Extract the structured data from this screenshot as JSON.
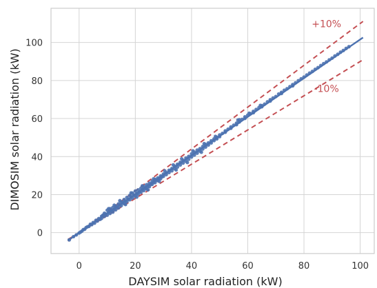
{
  "chart_data": {
    "type": "scatter",
    "title": "",
    "xlabel": "DAYSIM solar radiation (kW)",
    "ylabel": "DIMOSIM solar radiation (kW)",
    "xlim": [
      -10,
      105
    ],
    "ylim": [
      -11,
      118
    ],
    "xticks": [
      0,
      20,
      40,
      60,
      80,
      100
    ],
    "yticks": [
      0,
      20,
      40,
      60,
      80,
      100
    ],
    "grid": true,
    "legend": "none",
    "colors": {
      "points": "#4c72b0",
      "fit_line": "#4c72b0",
      "bounds": "#c44e52",
      "grid": "#d4d4d4",
      "spine": "#cccccc"
    },
    "fit_line": {
      "x": [
        -4,
        101
      ],
      "y": [
        -4.1,
        102.6
      ]
    },
    "bounds": [
      {
        "label": "+10%",
        "factor": 1.1,
        "x": [
          -4,
          101
        ],
        "label_at": [
          88,
          108
        ]
      },
      {
        "label": "-10%",
        "factor": 0.9,
        "x": [
          -4,
          101
        ],
        "label_at": [
          88,
          74
        ]
      }
    ],
    "points": [
      [
        -3.5,
        -3.8
      ],
      [
        -2.0,
        -2.1
      ],
      [
        -1.0,
        -1.2
      ],
      [
        0,
        -0.2
      ],
      [
        0.5,
        0.3
      ],
      [
        1.0,
        0.8
      ],
      [
        1.5,
        1.6
      ],
      [
        2.0,
        1.8
      ],
      [
        2.5,
        2.7
      ],
      [
        3.0,
        3.1
      ],
      [
        3.5,
        3.3
      ],
      [
        4.0,
        4.4
      ],
      [
        4.5,
        4.2
      ],
      [
        5.0,
        5.3
      ],
      [
        5.5,
        5.0
      ],
      [
        6.0,
        6.5
      ],
      [
        6.5,
        6.1
      ],
      [
        7.0,
        7.4
      ],
      [
        7.5,
        7.0
      ],
      [
        8.0,
        8.6
      ],
      [
        8.0,
        7.5
      ],
      [
        8.5,
        9.2
      ],
      [
        9.0,
        8.5
      ],
      [
        9.0,
        10.2
      ],
      [
        9.5,
        9.8
      ],
      [
        10.0,
        11.8
      ],
      [
        10.0,
        9.2
      ],
      [
        10.5,
        10.8
      ],
      [
        11.0,
        12.6
      ],
      [
        11.0,
        10.1
      ],
      [
        11.5,
        11.5
      ],
      [
        12.0,
        13.2
      ],
      [
        12.0,
        10.8
      ],
      [
        12.5,
        12.2
      ],
      [
        13.0,
        14.0
      ],
      [
        13.0,
        12.0
      ],
      [
        13.5,
        13.3
      ],
      [
        14.0,
        15.1
      ],
      [
        14.0,
        13.0
      ],
      [
        14.5,
        14.6
      ],
      [
        15.0,
        16.2
      ],
      [
        15.0,
        14.2
      ],
      [
        15.5,
        15.8
      ],
      [
        16.0,
        17.4
      ],
      [
        16.0,
        15.3
      ],
      [
        16.5,
        16.6
      ],
      [
        17.0,
        18.5
      ],
      [
        17.0,
        16.3
      ],
      [
        17.5,
        17.7
      ],
      [
        18.0,
        19.6
      ],
      [
        18.0,
        17.3
      ],
      [
        18.5,
        18.9
      ],
      [
        19.0,
        20.8
      ],
      [
        19.0,
        18.2
      ],
      [
        19.5,
        19.8
      ],
      [
        20.0,
        21.9
      ],
      [
        20.0,
        19.2
      ],
      [
        20.5,
        20.6
      ],
      [
        21.0,
        22.5
      ],
      [
        21.0,
        20.2
      ],
      [
        21.5,
        21.4
      ],
      [
        22.0,
        23.4
      ],
      [
        22.0,
        21.2
      ],
      [
        22.5,
        22.6
      ],
      [
        23.0,
        24.3
      ],
      [
        23.0,
        22.1
      ],
      [
        23.5,
        23.4
      ],
      [
        24.0,
        25.2
      ],
      [
        24.0,
        23.0
      ],
      [
        24.5,
        24.3
      ],
      [
        25.0,
        26.0
      ],
      [
        25.0,
        24.2
      ],
      [
        25.5,
        25.3
      ],
      [
        26.0,
        27.1
      ],
      [
        26.0,
        25.4
      ],
      [
        26.5,
        26.4
      ],
      [
        27.0,
        28.0
      ],
      [
        27.0,
        26.3
      ],
      [
        27.5,
        27.5
      ],
      [
        28.0,
        28.8
      ],
      [
        28.0,
        27.4
      ],
      [
        28.5,
        28.3
      ],
      [
        29.0,
        29.8
      ],
      [
        29.0,
        28.4
      ],
      [
        29.5,
        29.4
      ],
      [
        30.0,
        30.8
      ],
      [
        30.0,
        29.6
      ],
      [
        31.0,
        31.5
      ],
      [
        31.0,
        30.5
      ],
      [
        32.0,
        32.8
      ],
      [
        32.0,
        31.6
      ],
      [
        33.0,
        33.7
      ],
      [
        33.0,
        32.5
      ],
      [
        34.0,
        34.9
      ],
      [
        34.0,
        33.6
      ],
      [
        35.0,
        36.0
      ],
      [
        35.0,
        34.5
      ],
      [
        36.0,
        37.0
      ],
      [
        36.0,
        35.6
      ],
      [
        37.0,
        38.0
      ],
      [
        37.0,
        36.6
      ],
      [
        38.0,
        39.2
      ],
      [
        38.0,
        37.6
      ],
      [
        39.0,
        40.1
      ],
      [
        39.0,
        38.6
      ],
      [
        40.0,
        41.4
      ],
      [
        40.0,
        39.8
      ],
      [
        41.0,
        42.3
      ],
      [
        41.0,
        40.8
      ],
      [
        42.0,
        43.4
      ],
      [
        42.0,
        41.8
      ],
      [
        43.0,
        44.2
      ],
      [
        43.0,
        42.9
      ],
      [
        44.0,
        45.3
      ],
      [
        44.0,
        44.0
      ],
      [
        45.0,
        46.4
      ],
      [
        45.0,
        45.0
      ],
      [
        46.0,
        47.2
      ],
      [
        46.0,
        46.1
      ],
      [
        47.0,
        48.3
      ],
      [
        47.0,
        47.2
      ],
      [
        48.0,
        49.3
      ],
      [
        48.0,
        48.4
      ],
      [
        49.0,
        50.2
      ],
      [
        49.0,
        49.3
      ],
      [
        50.0,
        51.4
      ],
      [
        50.0,
        50.5
      ],
      [
        51.0,
        52.2
      ],
      [
        52.0,
        53.5
      ],
      [
        52.0,
        52.8
      ],
      [
        53.0,
        54.4
      ],
      [
        54.0,
        55.6
      ],
      [
        54.0,
        54.9
      ],
      [
        55.0,
        56.5
      ],
      [
        56.0,
        57.6
      ],
      [
        56.0,
        56.8
      ],
      [
        57.0,
        59.4
      ],
      [
        57.0,
        58.2
      ],
      [
        58.0,
        59.6
      ],
      [
        59.0,
        60.9
      ],
      [
        59.0,
        60.1
      ],
      [
        60.0,
        61.8
      ],
      [
        61.0,
        62.6
      ],
      [
        62.0,
        63.8
      ],
      [
        62.0,
        63.1
      ],
      [
        63.0,
        64.8
      ],
      [
        64.0,
        65.8
      ],
      [
        65.0,
        66.8
      ],
      [
        65.0,
        66.2
      ],
      [
        66.0,
        67.6
      ],
      [
        67.0,
        68.8
      ],
      [
        68.0,
        69.9
      ],
      [
        68.0,
        69.2
      ],
      [
        69.0,
        70.8
      ],
      [
        70.0,
        71.6
      ],
      [
        71.0,
        72.9
      ],
      [
        72.0,
        73.8
      ],
      [
        72.0,
        73.2
      ],
      [
        73.0,
        74.9
      ],
      [
        74.0,
        75.7
      ],
      [
        75.0,
        76.8
      ],
      [
        76.0,
        77.9
      ],
      [
        76.0,
        77.2
      ],
      [
        77.0,
        78.8
      ],
      [
        78.0,
        79.9
      ],
      [
        79.0,
        80.9
      ],
      [
        80.0,
        81.8
      ],
      [
        81.0,
        82.9
      ],
      [
        82.0,
        83.9
      ],
      [
        83.0,
        84.8
      ],
      [
        84.0,
        85.9
      ],
      [
        85.0,
        86.8
      ],
      [
        86.0,
        87.9
      ],
      [
        87.0,
        88.9
      ],
      [
        88.0,
        89.8
      ],
      [
        89.0,
        90.9
      ],
      [
        90.0,
        91.8
      ],
      [
        91.0,
        92.9
      ],
      [
        92.0,
        93.8
      ],
      [
        93.0,
        94.9
      ],
      [
        94.0,
        95.8
      ],
      [
        95.0,
        96.9
      ],
      [
        96.0,
        97.8
      ],
      [
        14.5,
        16.8
      ],
      [
        12.5,
        14.4
      ],
      [
        10.5,
        12.6
      ],
      [
        18.5,
        20.9
      ],
      [
        22.5,
        24.6
      ],
      [
        26.5,
        28.3
      ],
      [
        30.5,
        32.5
      ],
      [
        33.5,
        35.6
      ],
      [
        36.5,
        38.8
      ],
      [
        40.5,
        43.0
      ],
      [
        44.5,
        46.8
      ],
      [
        48.5,
        50.6
      ],
      [
        56.5,
        59.2
      ],
      [
        60.5,
        62.8
      ],
      [
        64.5,
        66.9
      ],
      [
        20.5,
        18.7
      ],
      [
        24.5,
        22.5
      ],
      [
        28.5,
        27.0
      ],
      [
        16.5,
        14.8
      ],
      [
        34.5,
        33.0
      ],
      [
        38.5,
        36.9
      ],
      [
        43.5,
        42.3
      ]
    ]
  }
}
